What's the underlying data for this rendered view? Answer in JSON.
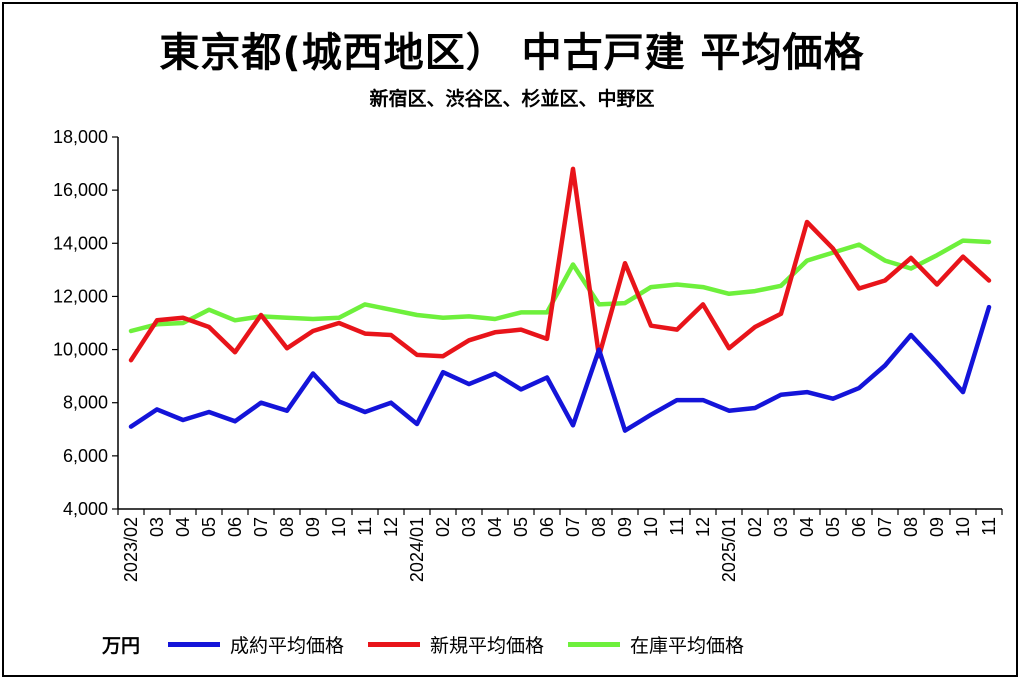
{
  "colors": {
    "成約平均価格": "#1414d9",
    "新規平均価格": "#e8141a",
    "在庫平均価格": "#6ef03c"
  },
  "legend": {
    "unit": "万円"
  },
  "chart_data": {
    "type": "line",
    "title": "東京都(城西地区） 中古戸建 平均価格",
    "subtitle": "新宿区、渋谷区、杉並区、中野区",
    "ylim": [
      4000,
      18000
    ],
    "yticks": [
      4000,
      6000,
      8000,
      10000,
      12000,
      14000,
      16000,
      18000
    ],
    "ytick_labels": [
      "4,000",
      "6,000",
      "8,000",
      "10,000",
      "12,000",
      "14,000",
      "16,000",
      "18,000"
    ],
    "grid": false,
    "legend_position": "bottom",
    "categories": [
      "2023/02",
      "03",
      "04",
      "05",
      "06",
      "07",
      "08",
      "09",
      "10",
      "11",
      "12",
      "2024/01",
      "02",
      "03",
      "04",
      "05",
      "06",
      "07",
      "08",
      "09",
      "10",
      "11",
      "12",
      "2025/01",
      "02",
      "03",
      "04",
      "05",
      "06",
      "07",
      "08",
      "09",
      "10",
      "11"
    ],
    "series": [
      {
        "name": "成約平均価格",
        "values": [
          7100,
          7750,
          7350,
          7650,
          7300,
          8000,
          7700,
          9100,
          8050,
          7650,
          8000,
          7200,
          9150,
          8700,
          9100,
          8500,
          8950,
          7150,
          10000,
          6950,
          7550,
          8100,
          8100,
          7700,
          7800,
          8300,
          8400,
          8150,
          8550,
          9400,
          10550,
          9500,
          8400,
          11600
        ]
      },
      {
        "name": "新規平均価格",
        "values": [
          9600,
          11100,
          11200,
          10850,
          9900,
          11300,
          10050,
          10700,
          11000,
          10600,
          10550,
          9800,
          9750,
          10350,
          10650,
          10750,
          10400,
          16800,
          9750,
          13250,
          10900,
          10750,
          11700,
          10050,
          10850,
          11350,
          14800,
          13800,
          12300,
          12600,
          13450,
          12450,
          13500,
          12600
        ]
      },
      {
        "name": "在庫平均価格",
        "values": [
          10700,
          10950,
          11000,
          11500,
          11100,
          11250,
          11200,
          11150,
          11200,
          11700,
          11500,
          11300,
          11200,
          11250,
          11150,
          11400,
          11400,
          13200,
          11700,
          11750,
          12350,
          12450,
          12350,
          12100,
          12200,
          12400,
          13350,
          13650,
          13950,
          13350,
          13050,
          13550,
          14100,
          14050
        ]
      }
    ]
  }
}
